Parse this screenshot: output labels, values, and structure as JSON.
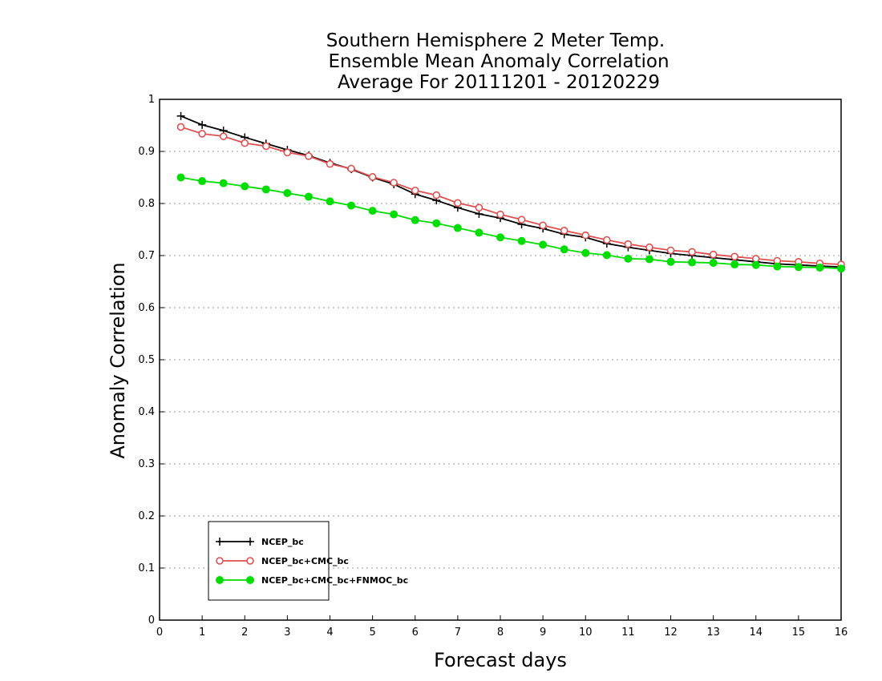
{
  "chart_data": {
    "type": "line",
    "title": [
      "Southern Hemisphere 2 Meter Temp.",
      "Ensemble Mean Anomaly Correlation",
      "Average For 20111201 - 20120229"
    ],
    "xlabel": "Forecast days",
    "ylabel": "Anomaly Correlation",
    "xlim": [
      0,
      16
    ],
    "ylim": [
      0,
      1
    ],
    "xticks": [
      "0",
      "1",
      "2",
      "3",
      "4",
      "5",
      "6",
      "7",
      "8",
      "9",
      "10",
      "11",
      "12",
      "13",
      "14",
      "15",
      "16"
    ],
    "yticks": [
      "0",
      "0.1",
      "0.2",
      "0.3",
      "0.4",
      "0.5",
      "0.6",
      "0.7",
      "0.8",
      "0.9",
      "1"
    ],
    "grid": "horizontal dotted",
    "legend_position": "bottom-left",
    "x": [
      0.5,
      1,
      1.5,
      2,
      2.5,
      3,
      3.5,
      4,
      4.5,
      5,
      5.5,
      6,
      6.5,
      7,
      7.5,
      8,
      8.5,
      9,
      9.5,
      10,
      10.5,
      11,
      11.5,
      12,
      12.5,
      13,
      13.5,
      14,
      14.5,
      15,
      15.5,
      16
    ],
    "series": [
      {
        "name": "NCEP_bc",
        "color": "#000000",
        "marker": "plus",
        "values": [
          0.968,
          0.951,
          0.94,
          0.927,
          0.915,
          0.903,
          0.892,
          0.878,
          0.866,
          0.85,
          0.837,
          0.818,
          0.806,
          0.792,
          0.78,
          0.772,
          0.76,
          0.752,
          0.741,
          0.735,
          0.723,
          0.716,
          0.71,
          0.704,
          0.7,
          0.696,
          0.692,
          0.688,
          0.684,
          0.682,
          0.68,
          0.678
        ]
      },
      {
        "name": "NCEP_bc+CMC_bc",
        "color": "#e05050",
        "marker": "open-circle",
        "values": [
          0.947,
          0.934,
          0.929,
          0.916,
          0.91,
          0.898,
          0.891,
          0.876,
          0.867,
          0.851,
          0.84,
          0.825,
          0.816,
          0.801,
          0.792,
          0.779,
          0.769,
          0.758,
          0.748,
          0.739,
          0.73,
          0.722,
          0.716,
          0.71,
          0.707,
          0.702,
          0.698,
          0.694,
          0.69,
          0.688,
          0.685,
          0.683
        ]
      },
      {
        "name": "NCEP_bc+CMC_bc+FNMOC_bc",
        "color": "#00dd00",
        "marker": "filled-circle",
        "values": [
          0.85,
          0.843,
          0.839,
          0.833,
          0.827,
          0.82,
          0.813,
          0.804,
          0.796,
          0.786,
          0.779,
          0.768,
          0.762,
          0.753,
          0.744,
          0.735,
          0.728,
          0.721,
          0.712,
          0.705,
          0.701,
          0.694,
          0.693,
          0.688,
          0.687,
          0.686,
          0.683,
          0.682,
          0.679,
          0.678,
          0.677,
          0.675
        ]
      }
    ]
  }
}
